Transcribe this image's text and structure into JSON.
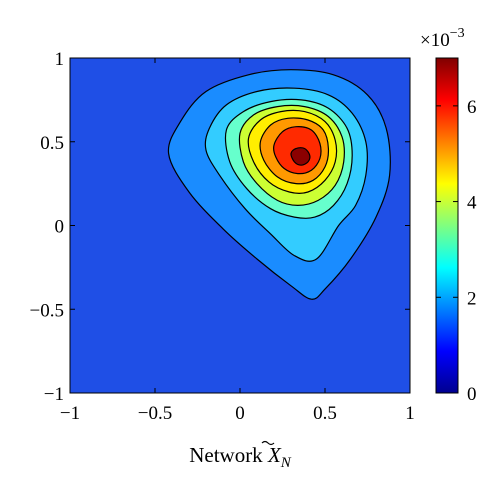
{
  "chart_data": {
    "type": "heatmap",
    "subtype": "filled-contour",
    "title": "",
    "xlabel": "Network ",
    "xlabel_symbol": "X",
    "xlabel_subscript": "N",
    "ylabel": "",
    "xlim": [
      -1,
      1
    ],
    "ylim": [
      -1,
      1
    ],
    "x_ticks": [
      -1,
      -0.5,
      0,
      0.5,
      1
    ],
    "x_tick_labels": [
      "−1",
      "−0.5",
      "0",
      "0.5",
      "1"
    ],
    "y_ticks": [
      -1,
      -0.5,
      0,
      0.5,
      1
    ],
    "y_tick_labels": [
      "−1",
      "−0.5",
      "0",
      "0.5",
      "1"
    ],
    "grid": false,
    "colormap": "jet",
    "colorbar": {
      "range": [
        0,
        7
      ],
      "multiplier_base": "×10",
      "multiplier_exponent": "−3",
      "ticks": [
        0,
        2,
        4,
        6
      ],
      "tick_labels": [
        "0",
        "2",
        "4",
        "6"
      ]
    },
    "background_level": 0.3,
    "peak": {
      "x": 0.35,
      "y": 0.4,
      "value": 6.9
    },
    "contour_levels": [
      {
        "level": 0.7,
        "color": "#1a8cff",
        "shape": [
          [
            -0.42,
            0.43
          ],
          [
            -0.35,
            0.62
          ],
          [
            -0.2,
            0.8
          ],
          [
            0.05,
            0.9
          ],
          [
            0.3,
            0.93
          ],
          [
            0.55,
            0.9
          ],
          [
            0.75,
            0.78
          ],
          [
            0.86,
            0.58
          ],
          [
            0.88,
            0.3
          ],
          [
            0.8,
            0.05
          ],
          [
            0.65,
            -0.2
          ],
          [
            0.5,
            -0.38
          ],
          [
            0.42,
            -0.44
          ],
          [
            0.3,
            -0.36
          ],
          [
            0.1,
            -0.2
          ],
          [
            -0.1,
            -0.02
          ],
          [
            -0.3,
            0.2
          ]
        ]
      },
      {
        "level": 1.4,
        "color": "#33ccff",
        "shape": [
          [
            -0.18,
            0.58
          ],
          [
            -0.08,
            0.72
          ],
          [
            0.1,
            0.8
          ],
          [
            0.32,
            0.82
          ],
          [
            0.52,
            0.78
          ],
          [
            0.66,
            0.67
          ],
          [
            0.74,
            0.5
          ],
          [
            0.74,
            0.3
          ],
          [
            0.68,
            0.12
          ],
          [
            0.58,
            0
          ],
          [
            0.45,
            -0.2
          ],
          [
            0.32,
            -0.18
          ],
          [
            0.18,
            -0.05
          ],
          [
            0.03,
            0.1
          ],
          [
            -0.12,
            0.3
          ],
          [
            -0.2,
            0.45
          ]
        ]
      },
      {
        "level": 2.5,
        "color": "#66ffcc",
        "shape": [
          [
            -0.08,
            0.57
          ],
          [
            0.02,
            0.68
          ],
          [
            0.18,
            0.74
          ],
          [
            0.36,
            0.75
          ],
          [
            0.52,
            0.7
          ],
          [
            0.63,
            0.58
          ],
          [
            0.66,
            0.42
          ],
          [
            0.63,
            0.25
          ],
          [
            0.55,
            0.12
          ],
          [
            0.44,
            0.05
          ],
          [
            0.32,
            0.05
          ],
          [
            0.18,
            0.1
          ],
          [
            0.04,
            0.22
          ],
          [
            -0.06,
            0.38
          ]
        ]
      },
      {
        "level": 3.5,
        "color": "#ccff33",
        "shape": [
          [
            0.0,
            0.55
          ],
          [
            0.08,
            0.66
          ],
          [
            0.22,
            0.71
          ],
          [
            0.38,
            0.71
          ],
          [
            0.52,
            0.65
          ],
          [
            0.6,
            0.53
          ],
          [
            0.61,
            0.38
          ],
          [
            0.56,
            0.24
          ],
          [
            0.46,
            0.15
          ],
          [
            0.34,
            0.12
          ],
          [
            0.22,
            0.15
          ],
          [
            0.1,
            0.25
          ],
          [
            0.02,
            0.38
          ]
        ]
      },
      {
        "level": 4.4,
        "color": "#ffee00",
        "shape": [
          [
            0.05,
            0.52
          ],
          [
            0.12,
            0.63
          ],
          [
            0.24,
            0.68
          ],
          [
            0.38,
            0.68
          ],
          [
            0.5,
            0.62
          ],
          [
            0.56,
            0.51
          ],
          [
            0.56,
            0.38
          ],
          [
            0.5,
            0.27
          ],
          [
            0.4,
            0.2
          ],
          [
            0.29,
            0.2
          ],
          [
            0.17,
            0.26
          ],
          [
            0.08,
            0.38
          ]
        ]
      },
      {
        "level": 5.2,
        "color": "#ff9900",
        "shape": [
          [
            0.12,
            0.5
          ],
          [
            0.18,
            0.6
          ],
          [
            0.28,
            0.64
          ],
          [
            0.4,
            0.63
          ],
          [
            0.49,
            0.57
          ],
          [
            0.52,
            0.46
          ],
          [
            0.5,
            0.35
          ],
          [
            0.43,
            0.27
          ],
          [
            0.33,
            0.25
          ],
          [
            0.22,
            0.29
          ],
          [
            0.14,
            0.39
          ]
        ]
      },
      {
        "level": 6.0,
        "color": "#ff2a00",
        "shape": [
          [
            0.2,
            0.48
          ],
          [
            0.25,
            0.56
          ],
          [
            0.33,
            0.59
          ],
          [
            0.42,
            0.57
          ],
          [
            0.47,
            0.49
          ],
          [
            0.47,
            0.4
          ],
          [
            0.42,
            0.33
          ],
          [
            0.34,
            0.31
          ],
          [
            0.26,
            0.34
          ],
          [
            0.21,
            0.41
          ]
        ]
      },
      {
        "level": 6.7,
        "color": "#8b0000",
        "shape": [
          [
            0.3,
            0.43
          ],
          [
            0.33,
            0.46
          ],
          [
            0.38,
            0.46
          ],
          [
            0.41,
            0.42
          ],
          [
            0.4,
            0.38
          ],
          [
            0.36,
            0.36
          ],
          [
            0.32,
            0.38
          ]
        ]
      }
    ]
  }
}
